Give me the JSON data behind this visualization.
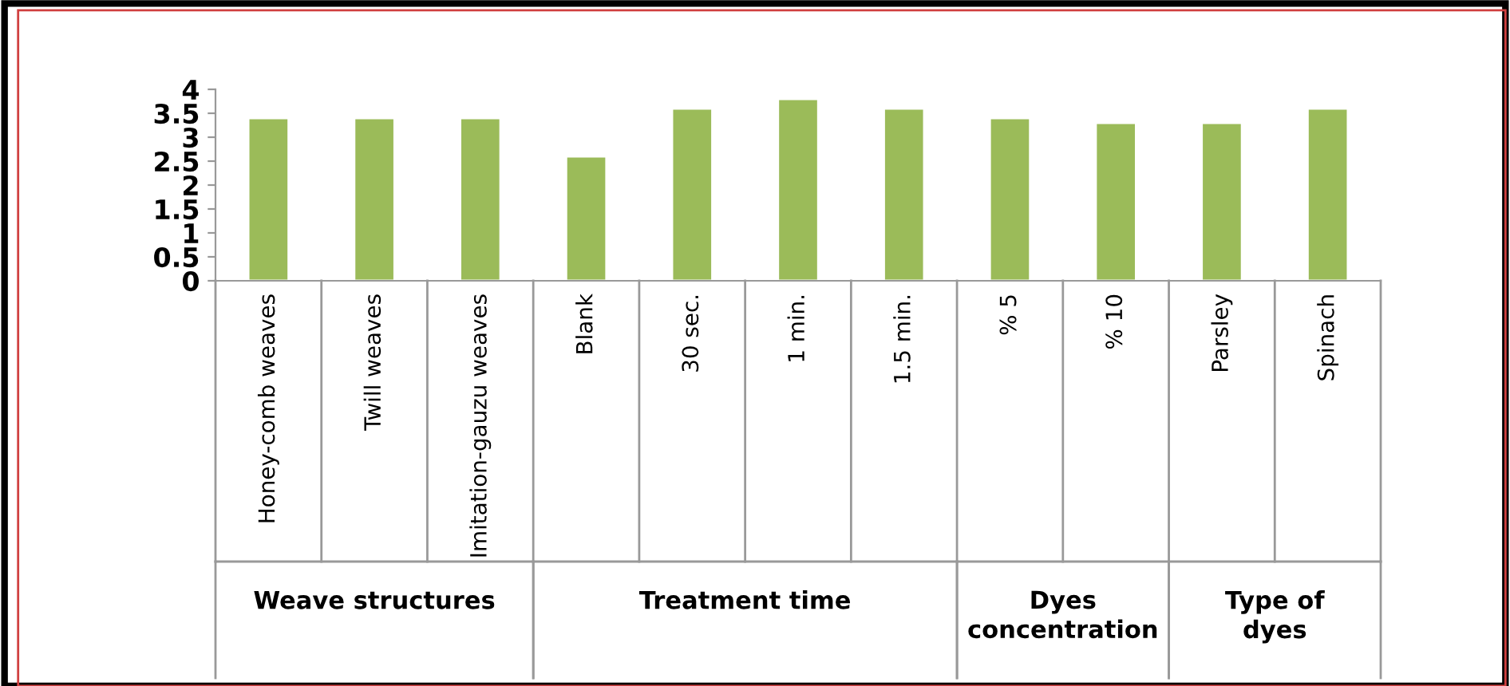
{
  "chart_data": {
    "type": "bar",
    "categories": [
      "Honey-comb weaves",
      "Twill weaves",
      "Imitation-gauzu weaves",
      "Blank",
      "30 sec.",
      "1 min.",
      "1.5 min.",
      "% 5",
      "% 10",
      "Parsley",
      "Spinach"
    ],
    "values": [
      3.4,
      3.4,
      3.4,
      2.6,
      3.6,
      3.8,
      3.6,
      3.4,
      3.3,
      3.3,
      3.6
    ],
    "color": "#9bbb59",
    "ylim": [
      0,
      4
    ],
    "yticks": [
      0,
      0.5,
      1,
      1.5,
      2,
      2.5,
      3,
      3.5,
      4
    ],
    "grid": false,
    "annotations": [
      "Weave structures",
      "Treatment time",
      "Dyes\nconcentration",
      "Type of\ndyes"
    ]
  }
}
